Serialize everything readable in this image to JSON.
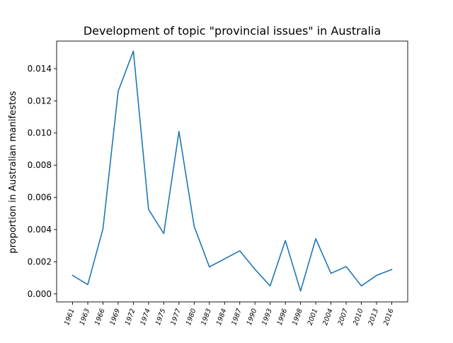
{
  "chart_data": {
    "type": "line",
    "title": "Development of topic \"provincial issues\" in Australia",
    "xlabel": "",
    "ylabel": "proportion in Australian manifestos",
    "categories": [
      "1961",
      "1963",
      "1966",
      "1969",
      "1972",
      "1974",
      "1975",
      "1977",
      "1980",
      "1983",
      "1984",
      "1987",
      "1990",
      "1993",
      "1996",
      "1998",
      "2001",
      "2004",
      "2007",
      "2010",
      "2013",
      "2016"
    ],
    "series": [
      {
        "values": [
          0.00115,
          0.00058,
          0.00405,
          0.0126,
          0.0151,
          0.00525,
          0.00375,
          0.0101,
          0.0042,
          0.00168,
          0.00218,
          0.00268,
          0.00153,
          0.0005,
          0.00332,
          0.00018,
          0.00343,
          0.00128,
          0.0017,
          0.0005,
          0.00115,
          0.00152
        ],
        "color": "#1f77b4"
      }
    ],
    "ylim": [
      -0.000495,
      0.015715
    ],
    "yticks": [
      "0.000",
      "0.002",
      "0.004",
      "0.006",
      "0.008",
      "0.010",
      "0.012",
      "0.014"
    ],
    "ytick_values": [
      0,
      0.002,
      0.004,
      0.006,
      0.008,
      0.01,
      0.012,
      0.014
    ],
    "grid": false,
    "legend": "none"
  }
}
